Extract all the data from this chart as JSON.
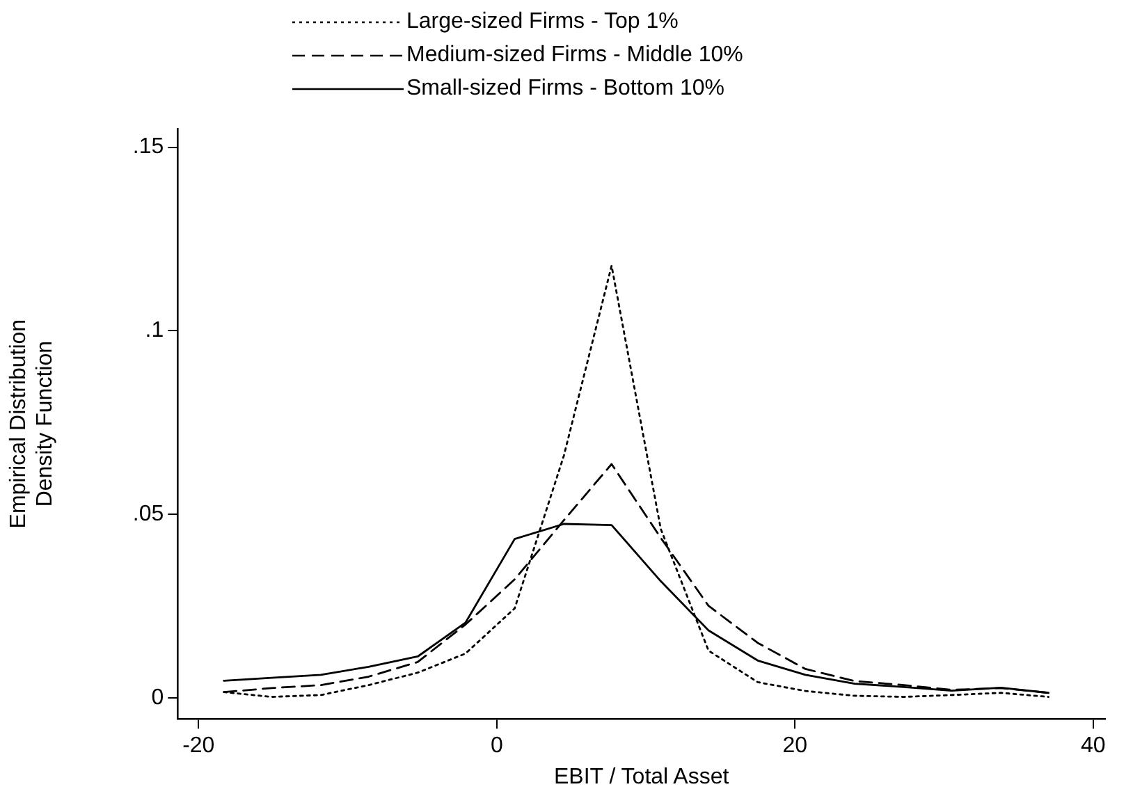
{
  "chart_data": {
    "type": "line",
    "xlabel": "EBIT / Total Asset",
    "ylabel": "Empirical Distribution\nDensity Function",
    "x": [
      -18.3,
      -15.1,
      -11.8,
      -8.6,
      -5.3,
      -2.1,
      1.2,
      4.5,
      7.7,
      11.0,
      14.2,
      17.5,
      20.7,
      24.0,
      27.3,
      30.5,
      33.8,
      37.0
    ],
    "xlim": [
      -21.4,
      40.8
    ],
    "xticks": [
      -20,
      0,
      20,
      40
    ],
    "ylim": [
      -0.0057,
      0.155
    ],
    "yticks": [
      {
        "value": 0,
        "label": "0"
      },
      {
        "value": 0.05,
        "label": ".05"
      },
      {
        "value": 0.1,
        "label": ".1"
      },
      {
        "value": 0.15,
        "label": ".15"
      }
    ],
    "grid": false,
    "legend": "top left",
    "marker": "none",
    "series": [
      {
        "name": "Large-sized Firms - Top 1%",
        "color": "#000000",
        "line_style": "dotted",
        "values": [
          0.0016,
          0.0003,
          0.0008,
          0.0035,
          0.0069,
          0.0121,
          0.0244,
          0.066,
          0.1177,
          0.046,
          0.0129,
          0.0043,
          0.0019,
          0.0006,
          0.0003,
          0.0008,
          0.0014,
          0.0003
        ]
      },
      {
        "name": "Medium-sized Firms - Middle 10%",
        "color": "#000000",
        "line_style": "dashed",
        "values": [
          0.0016,
          0.0027,
          0.0035,
          0.0058,
          0.0098,
          0.02,
          0.0323,
          0.0484,
          0.0637,
          0.0436,
          0.0251,
          0.015,
          0.0079,
          0.0046,
          0.0035,
          0.0022,
          0.0027,
          0.0014
        ]
      },
      {
        "name": "Small-sized Firms - Bottom 10%",
        "color": "#000000",
        "line_style": "solid",
        "values": [
          0.0047,
          0.0055,
          0.0063,
          0.0085,
          0.0113,
          0.0205,
          0.0433,
          0.0474,
          0.0471,
          0.0318,
          0.0184,
          0.0102,
          0.0063,
          0.0039,
          0.003,
          0.002,
          0.0028,
          0.0014
        ]
      }
    ]
  }
}
